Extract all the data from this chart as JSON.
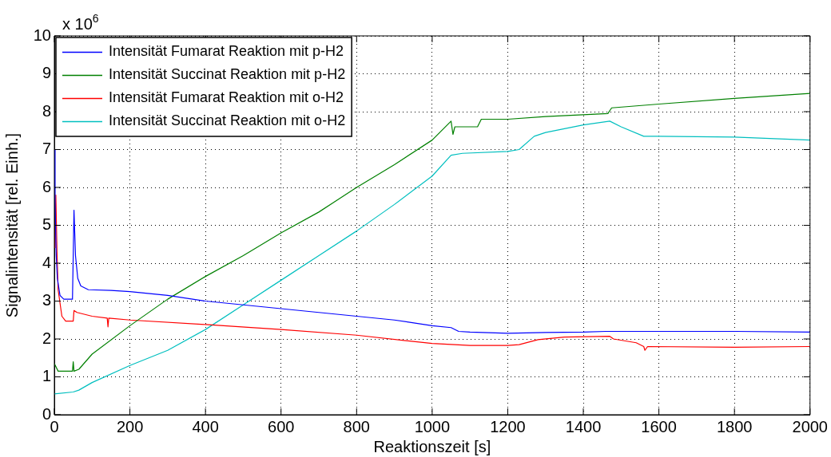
{
  "chart_data": {
    "type": "line",
    "xlabel": "Reaktionszeit [s]",
    "ylabel": "Signalintensität [rel. Einh.]",
    "annotations": [
      "x 10$^{6}$"
    ],
    "xlim": [
      0,
      2000
    ],
    "xticks": [
      0,
      200,
      400,
      600,
      800,
      1000,
      1200,
      1400,
      1600,
      1800,
      2000
    ],
    "ylim": [
      0,
      10
    ],
    "yticks": [
      0,
      1,
      2,
      3,
      4,
      5,
      6,
      7,
      8,
      9,
      10
    ],
    "grid": true,
    "legend": "top left",
    "marker": "none",
    "line_style": "solid",
    "series": [
      {
        "name": "Intensität Fumarat Reaktion mit p-H2",
        "color": "#0000ff",
        "x": [
          0,
          2,
          5,
          8,
          15,
          25,
          48,
          50,
          52,
          54,
          56,
          62,
          70,
          90,
          150,
          200,
          300,
          400,
          500,
          600,
          700,
          800,
          900,
          1000,
          1050,
          1070,
          1100,
          1200,
          1300,
          1400,
          1460,
          1600,
          1800,
          2000
        ],
        "values": [
          7.0,
          5.6,
          4.2,
          3.6,
          3.15,
          3.05,
          3.05,
          4.2,
          5.4,
          4.8,
          4.2,
          3.6,
          3.4,
          3.3,
          3.28,
          3.25,
          3.15,
          3.0,
          2.9,
          2.8,
          2.7,
          2.6,
          2.5,
          2.35,
          2.3,
          2.2,
          2.18,
          2.15,
          2.17,
          2.18,
          2.2,
          2.2,
          2.2,
          2.18
        ]
      },
      {
        "name": "Intensität Succinat Reaktion mit p-H2",
        "color": "#008000",
        "x": [
          0,
          10,
          48,
          50,
          52,
          65,
          100,
          200,
          300,
          400,
          500,
          600,
          700,
          800,
          900,
          1000,
          1050,
          1055,
          1060,
          1120,
          1130,
          1200,
          1300,
          1465,
          1475,
          1600,
          1800,
          2000
        ],
        "values": [
          1.35,
          1.15,
          1.15,
          1.4,
          1.15,
          1.2,
          1.6,
          2.35,
          3.05,
          3.65,
          4.2,
          4.8,
          5.35,
          6.0,
          6.6,
          7.25,
          7.75,
          7.4,
          7.6,
          7.6,
          7.8,
          7.8,
          7.87,
          7.95,
          8.1,
          8.2,
          8.35,
          8.48
        ]
      },
      {
        "name": "Intensität Fumarat Reaktion mit o-H2",
        "color": "#ff0000",
        "x": [
          2,
          4,
          7,
          10,
          20,
          30,
          50,
          52,
          60,
          100,
          140,
          142,
          144,
          200,
          400,
          600,
          800,
          1000,
          1100,
          1200,
          1230,
          1280,
          1350,
          1470,
          1480,
          1540,
          1560,
          1563,
          1570,
          1800,
          2000
        ],
        "values": [
          4.4,
          5.8,
          4.3,
          3.3,
          2.6,
          2.47,
          2.47,
          2.75,
          2.7,
          2.6,
          2.55,
          2.32,
          2.55,
          2.5,
          2.38,
          2.25,
          2.1,
          1.88,
          1.83,
          1.83,
          1.85,
          1.98,
          2.05,
          2.07,
          2.0,
          1.9,
          1.8,
          1.7,
          1.8,
          1.78,
          1.8
        ]
      },
      {
        "name": "Intensität Succinat Reaktion mit o-H2",
        "color": "#00bfbf",
        "x": [
          0,
          50,
          65,
          100,
          200,
          300,
          400,
          500,
          600,
          700,
          800,
          900,
          1000,
          1050,
          1080,
          1200,
          1230,
          1270,
          1300,
          1400,
          1470,
          1500,
          1560,
          1600,
          1800,
          2000
        ],
        "values": [
          0.55,
          0.6,
          0.65,
          0.85,
          1.3,
          1.7,
          2.25,
          2.9,
          3.55,
          4.2,
          4.85,
          5.55,
          6.3,
          6.85,
          6.9,
          6.95,
          7.0,
          7.35,
          7.45,
          7.65,
          7.75,
          7.6,
          7.35,
          7.35,
          7.33,
          7.25
        ]
      }
    ]
  }
}
